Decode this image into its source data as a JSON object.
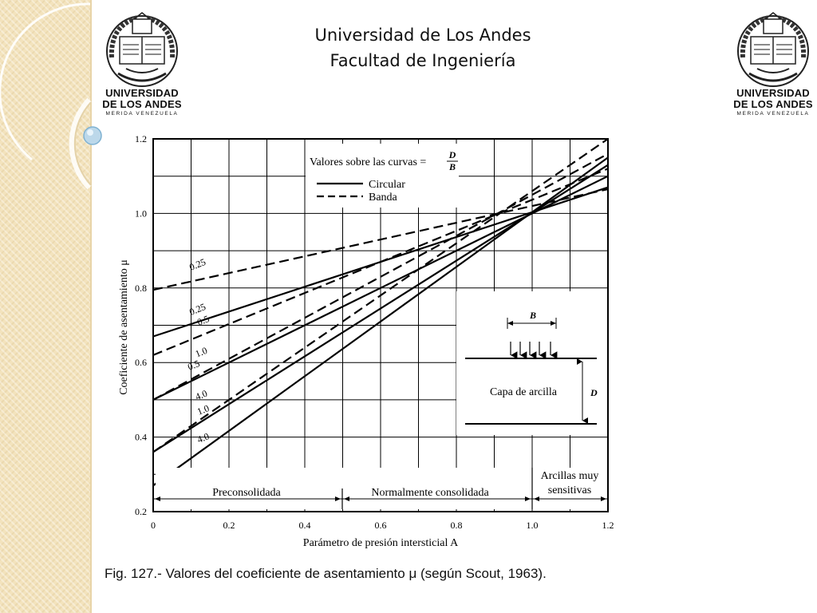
{
  "header": {
    "title_line1": "Universidad de Los Andes",
    "title_line2": "Facultad de Ingeniería"
  },
  "logo": {
    "line1": "UNIVERSIDAD",
    "line2": "DE LOS ANDES",
    "line3": "MERIDA VENEZUELA"
  },
  "caption": "Fig. 127.- Valores del coeficiente de asentamiento μ (según Scout, 1963).",
  "chart_data": {
    "type": "line",
    "xlabel": "Parámetro de presión intersticial A",
    "ylabel": "Coeficiente de asentamiento μ",
    "xlim": [
      0,
      1.2
    ],
    "ylim": [
      0.2,
      1.2
    ],
    "x_ticks": [
      "0",
      "0.2",
      "0.4",
      "0.6",
      "0.8",
      "1.0",
      "1.2"
    ],
    "y_ticks": [
      "0.2",
      "0.4",
      "0.6",
      "0.8",
      "1.0",
      "1.2"
    ],
    "grid": true,
    "legend": {
      "title": "Valores sobre las curvas =",
      "fraction_num": "D",
      "fraction_den": "B",
      "circular": "Circular",
      "banda": "Banda",
      "placement": "top-center"
    },
    "series": [
      {
        "label": "0.25",
        "style": "solid",
        "x": [
          0,
          1.2
        ],
        "y": [
          0.67,
          1.07
        ]
      },
      {
        "label": "0.5",
        "style": "solid",
        "x": [
          0,
          1.2
        ],
        "y": [
          0.5,
          1.1
        ]
      },
      {
        "label": "1.0",
        "style": "solid",
        "x": [
          0,
          1.2
        ],
        "y": [
          0.36,
          1.13
        ]
      },
      {
        "label": "4.0",
        "style": "solid",
        "x": [
          0,
          1.2
        ],
        "y": [
          0.27,
          1.15
        ]
      },
      {
        "label": "0.25",
        "style": "dashed",
        "x": [
          0,
          1.2
        ],
        "y": [
          0.795,
          1.065
        ]
      },
      {
        "label": "0.5",
        "style": "dashed",
        "x": [
          0,
          1.2
        ],
        "y": [
          0.62,
          1.12
        ]
      },
      {
        "label": "1.0",
        "style": "dashed",
        "x": [
          0,
          1.2
        ],
        "y": [
          0.5,
          1.16
        ]
      },
      {
        "label": "4.0",
        "style": "dashed",
        "x": [
          0,
          1.2
        ],
        "y": [
          0.36,
          1.2
        ]
      }
    ],
    "label_positions": [
      {
        "text": "0.25",
        "x": 0.12,
        "y": 0.855
      },
      {
        "text": "0.25",
        "x": 0.12,
        "y": 0.735
      },
      {
        "text": "0.5",
        "x": 0.135,
        "y": 0.705
      },
      {
        "text": "1.0",
        "x": 0.13,
        "y": 0.62
      },
      {
        "text": "0.5",
        "x": 0.11,
        "y": 0.585
      },
      {
        "text": "4.0",
        "x": 0.13,
        "y": 0.505
      },
      {
        "text": "1.0",
        "x": 0.135,
        "y": 0.465
      },
      {
        "text": "4.0",
        "x": 0.135,
        "y": 0.39
      }
    ],
    "regions": [
      {
        "label": "Preconsolidada",
        "x_from": 0,
        "x_to": 0.5
      },
      {
        "label": "Normalmente consolidada",
        "x_from": 0.5,
        "x_to": 1.0
      },
      {
        "label_line1": "Arcillas muy",
        "label_line2": "sensitivas",
        "x_from": 1.0,
        "x_to": 1.2
      }
    ],
    "inset": {
      "width_label": "B",
      "depth_label": "D",
      "layer_label": "Capa de arcilla"
    }
  }
}
